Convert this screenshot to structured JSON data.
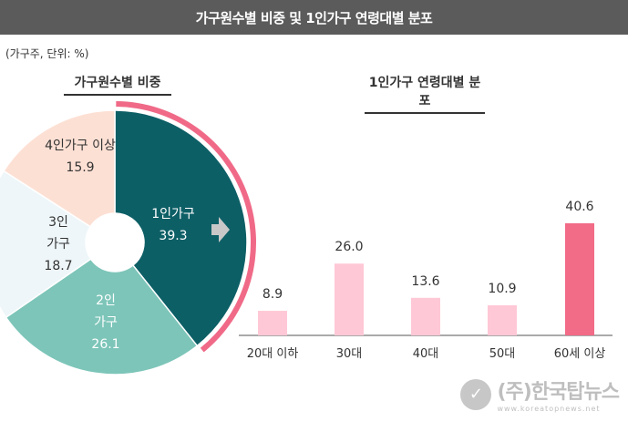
{
  "header": {
    "title": "가구원수별 비중 및 1인가구 연령대별 분포"
  },
  "unit_note": "(가구주, 단위: %)",
  "watermark": {
    "name": "(주)한국탑뉴스",
    "url": "www.koreatopnews.net"
  },
  "colors": {
    "one_person": "#0d5f66",
    "two_person": "#7dc5b9",
    "three_person": "#eef6f9",
    "four_plus": "#fde0d4",
    "highlight_ring": "#f06a88",
    "bar_light": "#ffc8d6",
    "bar_highlight": "#f26b87",
    "arrow": "#c8c8c8"
  },
  "chart_data": [
    {
      "type": "pie",
      "title": "가구원수별 비중",
      "slices": [
        {
          "label": "1인가구",
          "value": 39.3,
          "value_text": "39.3"
        },
        {
          "label": "2인 가구",
          "value": 26.1,
          "value_text": "26.1"
        },
        {
          "label": "3인 가구",
          "value": 18.7,
          "value_text": "18.7"
        },
        {
          "label": "4인가구 이상",
          "value": 15.9,
          "value_text": "15.9"
        }
      ]
    },
    {
      "type": "bar",
      "title": "1인가구 연령대별 분포",
      "categories": [
        "20대 이하",
        "30대",
        "40대",
        "50대",
        "60세 이상"
      ],
      "values": [
        8.9,
        26.0,
        13.6,
        10.9,
        40.6
      ],
      "value_labels": [
        "8.9",
        "26.0",
        "13.6",
        "10.9",
        "40.6"
      ],
      "highlight_index": 4
    }
  ]
}
